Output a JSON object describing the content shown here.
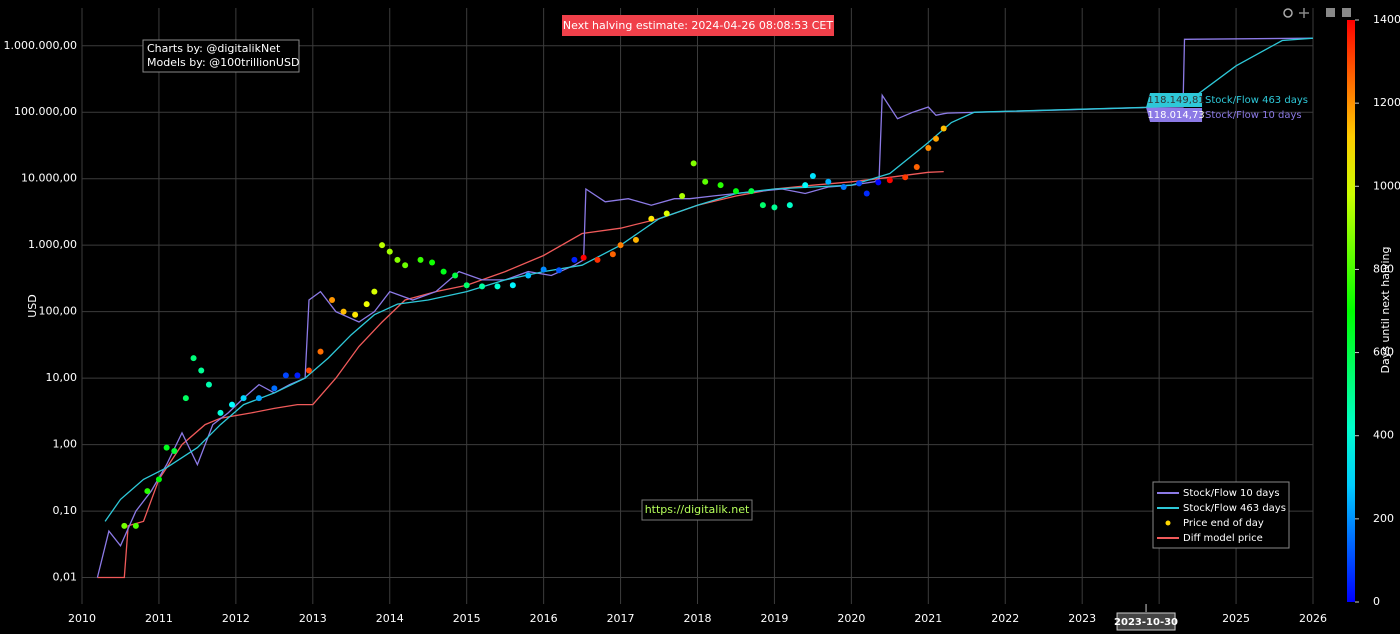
{
  "chart_data": {
    "type": "line",
    "y_title": "USD",
    "log_y": true,
    "grid": true,
    "xlim": [
      2010,
      2026
    ],
    "xticks": [
      2010,
      2011,
      2012,
      2013,
      2014,
      2015,
      2016,
      2017,
      2018,
      2019,
      2020,
      2021,
      2022,
      2023,
      2024,
      2025,
      2026
    ],
    "ylim": [
      0.004,
      3700000
    ],
    "yticks": [
      {
        "value": 0.01,
        "label": "0,01"
      },
      {
        "value": 0.1,
        "label": "0,10"
      },
      {
        "value": 1,
        "label": "1,00"
      },
      {
        "value": 10,
        "label": "10,00"
      },
      {
        "value": 100,
        "label": "100,00"
      },
      {
        "value": 1000,
        "label": "1.000,00"
      },
      {
        "value": 10000,
        "label": "10.000,00"
      },
      {
        "value": 100000,
        "label": "100.000,00"
      },
      {
        "value": 1000000,
        "label": "1.000.000,00"
      }
    ],
    "legend": "bottom-right",
    "series": [
      {
        "name": "Stock/Flow 10 days",
        "type": "line",
        "color": "#8c7ae6",
        "x": [
          2010.2,
          2010.35,
          2010.5,
          2010.7,
          2010.9,
          2011.1,
          2011.3,
          2011.5,
          2011.7,
          2011.9,
          2012.1,
          2012.3,
          2012.5,
          2012.7,
          2012.9,
          2012.95,
          2013.1,
          2013.3,
          2013.6,
          2013.8,
          2014.0,
          2014.3,
          2014.6,
          2014.9,
          2015.2,
          2015.5,
          2015.8,
          2016.1,
          2016.4,
          2016.52,
          2016.55,
          2016.8,
          2017.1,
          2017.4,
          2017.7,
          2017.9,
          2018.2,
          2018.5,
          2018.8,
          2019.1,
          2019.4,
          2019.7,
          2020.0,
          2020.3,
          2020.36,
          2020.4,
          2020.6,
          2020.8,
          2021.0,
          2021.1,
          2021.2,
          2021.25,
          2023.83,
          2024.31,
          2024.33,
          2026
        ],
        "values": [
          0.01,
          0.05,
          0.03,
          0.1,
          0.2,
          0.5,
          1.5,
          0.5,
          2,
          3,
          5,
          8,
          6,
          8,
          10,
          150,
          200,
          100,
          70,
          100,
          200,
          150,
          200,
          400,
          300,
          300,
          400,
          350,
          500,
          600,
          7000,
          4500,
          5000,
          4000,
          5000,
          5000,
          5500,
          6000,
          6500,
          7000,
          6000,
          7500,
          8000,
          9000,
          10000,
          180000,
          80000,
          100000,
          120000,
          90000,
          95000,
          97000,
          118014.73,
          120000,
          1250000,
          1300000
        ]
      },
      {
        "name": "Stock/Flow 463 days",
        "type": "line",
        "color": "#2ec8d8",
        "x": [
          2010.3,
          2010.5,
          2010.8,
          2011.1,
          2011.5,
          2011.8,
          2012.1,
          2012.5,
          2012.9,
          2013.2,
          2013.5,
          2013.8,
          2014.1,
          2014.5,
          2015.0,
          2015.5,
          2016.0,
          2016.5,
          2017.0,
          2017.5,
          2018.0,
          2018.5,
          2019.0,
          2019.5,
          2020.0,
          2020.5,
          2021.0,
          2021.3,
          2021.6,
          2023.83,
          2024.3,
          2025.0,
          2025.6,
          2026
        ],
        "values": [
          0.07,
          0.15,
          0.3,
          0.45,
          0.9,
          2,
          4,
          6,
          10,
          20,
          45,
          90,
          130,
          150,
          200,
          300,
          400,
          500,
          1000,
          2500,
          4000,
          6000,
          7000,
          7500,
          8000,
          12000,
          35000,
          70000,
          100000,
          118149.81,
          125000,
          500000,
          1200000,
          1300000
        ]
      },
      {
        "name": "Price end of day",
        "type": "scatter",
        "color": "#ffd700",
        "x": [
          2010.55,
          2010.7,
          2010.85,
          2011.0,
          2011.1,
          2011.2,
          2011.35,
          2011.45,
          2011.55,
          2011.65,
          2011.8,
          2011.95,
          2012.1,
          2012.3,
          2012.5,
          2012.65,
          2012.8,
          2012.95,
          2013.1,
          2013.25,
          2013.4,
          2013.55,
          2013.7,
          2013.8,
          2013.9,
          2014.0,
          2014.1,
          2014.2,
          2014.4,
          2014.55,
          2014.7,
          2014.85,
          2015.0,
          2015.2,
          2015.4,
          2015.6,
          2015.8,
          2016.0,
          2016.2,
          2016.4,
          2016.52,
          2016.7,
          2016.9,
          2017.0,
          2017.2,
          2017.4,
          2017.6,
          2017.8,
          2017.95,
          2018.1,
          2018.3,
          2018.5,
          2018.7,
          2018.85,
          2019.0,
          2019.2,
          2019.4,
          2019.5,
          2019.7,
          2019.9,
          2020.1,
          2020.2,
          2020.35,
          2020.5,
          2020.7,
          2020.85,
          2021.0,
          2021.1,
          2021.2
        ],
        "values": [
          0.06,
          0.06,
          0.2,
          0.3,
          0.9,
          0.8,
          5,
          20,
          13,
          8,
          3,
          4,
          5,
          5,
          7,
          11,
          11,
          13,
          25,
          150,
          100,
          90,
          130,
          200,
          1000,
          800,
          600,
          500,
          600,
          550,
          400,
          350,
          250,
          240,
          240,
          250,
          350,
          430,
          420,
          600,
          650,
          600,
          730,
          1000,
          1200,
          2500,
          3000,
          5500,
          17000,
          9000,
          8000,
          6500,
          6500,
          4000,
          3700,
          4000,
          8000,
          11000,
          9000,
          7500,
          8500,
          6000,
          8800,
          9500,
          10500,
          15000,
          29000,
          40000,
          57000
        ],
        "color_values": [
          862,
          807,
          752,
          698,
          661,
          625,
          570,
          533,
          497,
          460,
          405,
          351,
          296,
          223,
          150,
          95,
          40,
          1304,
          1249,
          1194,
          1140,
          1085,
          1030,
          994,
          957,
          921,
          884,
          848,
          774,
          720,
          665,
          610,
          555,
          482,
          409,
          336,
          263,
          190,
          117,
          44,
          1403,
          1337,
          1264,
          1227,
          1154,
          1081,
          1008,
          935,
          880,
          826,
          753,
          680,
          607,
          552,
          497,
          424,
          351,
          314,
          241,
          168,
          95,
          58,
          4,
          1395,
          1322,
          1267,
          1212,
          1176,
          1139
        ]
      },
      {
        "name": "Diff model price",
        "type": "line",
        "color": "#f05a5a",
        "x": [
          2010.2,
          2010.55,
          2010.6,
          2010.8,
          2011.0,
          2011.3,
          2011.6,
          2011.8,
          2012.2,
          2012.5,
          2012.8,
          2013.0,
          2013.3,
          2013.6,
          2013.9,
          2014.2,
          2014.6,
          2015.0,
          2015.5,
          2016.0,
          2016.5,
          2017.0,
          2017.5,
          2018.0,
          2018.5,
          2019.0,
          2019.5,
          2020.0,
          2020.5,
          2021.0,
          2021.2
        ],
        "values": [
          0.01,
          0.01,
          0.06,
          0.07,
          0.3,
          1,
          2,
          2.5,
          3,
          3.5,
          4,
          4,
          10,
          30,
          70,
          150,
          200,
          250,
          400,
          700,
          1500,
          1800,
          2500,
          4000,
          5500,
          7000,
          8000,
          9000,
          10500,
          12500,
          12800
        ]
      }
    ],
    "colorbar": {
      "title": "Days until next halving",
      "lim": [
        0,
        1400
      ],
      "ticks": [
        0,
        200,
        400,
        600,
        800,
        1000,
        1200,
        1400
      ]
    },
    "annotations": {
      "halving": "Next halving estimate: 2024-04-26 08:08:53 CET",
      "credits": [
        "Charts by: @digitalikNet",
        "Models by: @100trillionUSD"
      ],
      "url": "https://digitalik.net"
    },
    "hover": {
      "x": 2023.83,
      "x_label": "2023-10-30",
      "points": [
        {
          "series": 1,
          "value": 118149.81,
          "label": "118.149,81"
        },
        {
          "series": 0,
          "value": 118014.73,
          "label": "118.014,73"
        }
      ]
    }
  }
}
